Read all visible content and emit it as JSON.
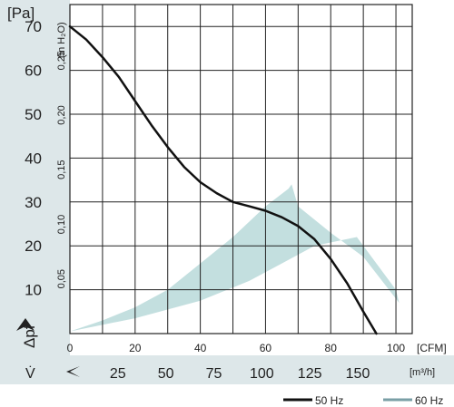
{
  "chart_data": {
    "type": "line",
    "y_unit_label": "[Pa]",
    "y2_unit_label": "(in H₂O)",
    "y_axis_symbol": "Δpf",
    "x_axis_symbol": "V̇",
    "x_unit_label": "[CFM]",
    "x2_unit_label": "[m³/h]",
    "xlim": [
      0,
      105
    ],
    "ylim": [
      0,
      75
    ],
    "x_ticks": [
      {
        "v": 0,
        "label": "0"
      },
      {
        "v": 20,
        "label": "20"
      },
      {
        "v": 40,
        "label": "40"
      },
      {
        "v": 60,
        "label": "60"
      },
      {
        "v": 80,
        "label": "80"
      },
      {
        "v": 100,
        "label": "100"
      }
    ],
    "x2_ticks": [
      {
        "v": 14.71,
        "label": "25"
      },
      {
        "v": 29.43,
        "label": "50"
      },
      {
        "v": 44.14,
        "label": "75"
      },
      {
        "v": 58.86,
        "label": "100"
      },
      {
        "v": 73.57,
        "label": "125"
      },
      {
        "v": 88.29,
        "label": "150"
      }
    ],
    "y_ticks": [
      {
        "v": 10,
        "label": "10"
      },
      {
        "v": 20,
        "label": "20"
      },
      {
        "v": 30,
        "label": "30"
      },
      {
        "v": 40,
        "label": "40"
      },
      {
        "v": 50,
        "label": "50"
      },
      {
        "v": 60,
        "label": "60"
      },
      {
        "v": 70,
        "label": "70"
      }
    ],
    "y2_ticks": [
      {
        "v": 12.45,
        "label": "0,05"
      },
      {
        "v": 24.9,
        "label": "0,10"
      },
      {
        "v": 37.35,
        "label": "0,15"
      },
      {
        "v": 49.8,
        "label": "0,20"
      },
      {
        "v": 62.25,
        "label": "0,25"
      }
    ],
    "grid_x": [
      10,
      20,
      30,
      40,
      50,
      60,
      70,
      80,
      90,
      100
    ],
    "grid_y": [
      10,
      20,
      30,
      40,
      50,
      60,
      70
    ],
    "series": [
      {
        "name": "50 Hz",
        "style": "line",
        "color": "#111111",
        "points": [
          [
            0,
            70
          ],
          [
            5,
            67
          ],
          [
            10,
            63
          ],
          [
            15,
            58.5
          ],
          [
            20,
            53
          ],
          [
            25,
            47.5
          ],
          [
            30,
            42.5
          ],
          [
            35,
            38
          ],
          [
            40,
            34.5
          ],
          [
            45,
            32
          ],
          [
            50,
            30
          ],
          [
            55,
            29
          ],
          [
            60,
            28
          ],
          [
            65,
            26.5
          ],
          [
            70,
            24.5
          ],
          [
            75,
            21.5
          ],
          [
            80,
            17
          ],
          [
            85,
            11.5
          ],
          [
            90,
            5
          ],
          [
            94,
            0
          ]
        ]
      },
      {
        "name": "60 Hz",
        "style": "area",
        "color": "#c3dfdf",
        "points": [
          [
            0,
            0.5
          ],
          [
            20,
            3.5
          ],
          [
            40,
            7.5
          ],
          [
            55,
            12
          ],
          [
            65,
            16
          ],
          [
            75,
            20
          ],
          [
            88,
            22
          ],
          [
            100,
            10
          ],
          [
            101,
            7
          ],
          [
            90,
            17.5
          ],
          [
            80,
            23
          ],
          [
            70,
            29
          ],
          [
            68,
            34
          ],
          [
            67,
            33
          ],
          [
            60,
            29
          ],
          [
            50,
            22
          ],
          [
            40,
            16
          ],
          [
            30,
            10
          ],
          [
            20,
            6
          ],
          [
            10,
            3
          ],
          [
            0,
            0.5
          ]
        ]
      }
    ],
    "legend_placement": "bottom-right"
  }
}
